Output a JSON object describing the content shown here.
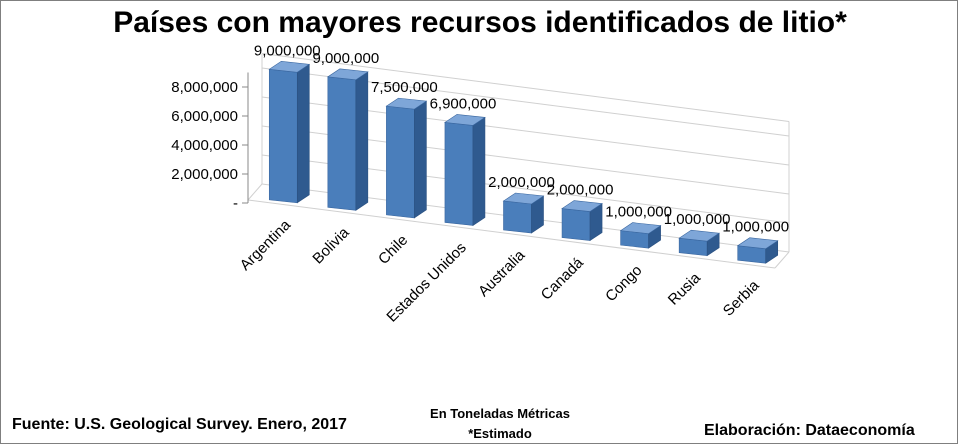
{
  "chart_data": {
    "type": "bar",
    "title": "Países con mayores recursos identificados de litio*",
    "categories": [
      "Argentina",
      "Bolivia",
      "Chile",
      "Estados Unidos",
      "Australia",
      "Canadá",
      "Congo",
      "Rusia",
      "Serbia"
    ],
    "values": [
      9000000,
      9000000,
      7500000,
      6900000,
      2000000,
      2000000,
      1000000,
      1000000,
      1000000
    ],
    "data_labels": [
      "9,000,000",
      "9,000,000",
      "7,500,000",
      "6,900,000",
      "2,000,000",
      "2,000,000",
      "1,000,000",
      "1,000,000",
      "1,000,000"
    ],
    "ytick_labels": [
      "-",
      "2,000,000",
      "4,000,000",
      "6,000,000",
      "8,000,000"
    ],
    "ytick_values": [
      0,
      2000000,
      4000000,
      6000000,
      8000000
    ],
    "ylim": [
      0,
      9000000
    ],
    "grid": true,
    "style": "3d-column",
    "colors": {
      "bar_front": "#4a7ebb",
      "bar_side": "#2f5a8f",
      "bar_top": "#7ea6d8",
      "grid": "#d0d0d0"
    }
  },
  "footer": {
    "source": "Fuente: U.S. Geological Survey. Enero, 2017",
    "units": "En Toneladas Métricas",
    "note": "*Estimado",
    "credit": "Elaboración: Dataeconomía"
  }
}
